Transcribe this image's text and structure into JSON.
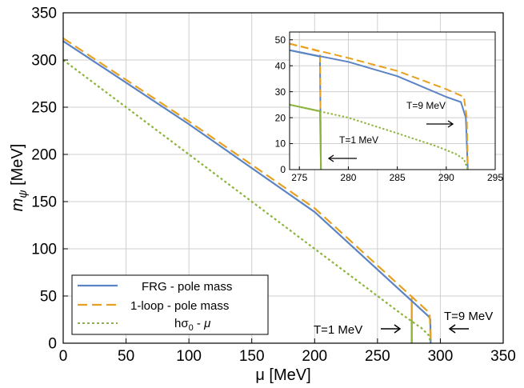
{
  "chart_data": [
    {
      "type": "line",
      "xlabel": "μ [MeV]",
      "ylabel_main": "m",
      "ylabel_sub": "ψ",
      "ylabel_unit": " [MeV]",
      "xlim": [
        0,
        350
      ],
      "ylim": [
        0,
        350
      ],
      "xticks": [
        "0",
        "50",
        "100",
        "150",
        "200",
        "250",
        "300",
        "350"
      ],
      "yticks": [
        "0",
        "50",
        "100",
        "150",
        "200",
        "250",
        "300",
        "350"
      ],
      "grid": true,
      "legend_position": "bottom-left",
      "series": [
        {
          "name": "FRG - pole mass",
          "color": "#5b84c4",
          "style": "solid",
          "points": [
            [
              0,
              320
            ],
            [
              100,
              232
            ],
            [
              200,
              139
            ],
            [
              291,
              28
            ],
            [
              292,
              25
            ],
            [
              292.3,
              0
            ]
          ]
        },
        {
          "name": "1-loop - pole mass",
          "color": "#e8a020",
          "style": "dashed",
          "points": [
            [
              0,
              323
            ],
            [
              100,
              235
            ],
            [
              200,
              143
            ],
            [
              291.5,
              32
            ],
            [
              292.3,
              0
            ]
          ]
        },
        {
          "name": "hσ0 - μ",
          "color": "#8db43a",
          "style": "dotted",
          "points": [
            [
              0,
              300
            ],
            [
              100,
              200
            ],
            [
              200,
              100
            ],
            [
              270,
              30
            ],
            [
              285,
              16
            ],
            [
              291,
              8
            ],
            [
              292.3,
              0
            ]
          ]
        },
        {
          "name": "T=1 MeV FRG",
          "color": "#5b84c4",
          "style": "solid",
          "points": [
            [
              277.2,
              46
            ],
            [
              277.2,
              0
            ]
          ]
        },
        {
          "name": "T=1 MeV 1-loop",
          "color": "#e8a020",
          "style": "solid",
          "points": [
            [
              277.2,
              48
            ],
            [
              277.2,
              0
            ]
          ]
        },
        {
          "name": "T=1 MeV hσ0",
          "color": "#8db43a",
          "style": "solid",
          "points": [
            [
              277.2,
              25
            ],
            [
              277.2,
              0
            ]
          ]
        }
      ],
      "annotations": [
        {
          "text": "T=1 MeV",
          "x": 262,
          "y": 15,
          "arrow": "right"
        },
        {
          "text": "T=9 MeV",
          "x": 330,
          "y": 42,
          "arrow": "left"
        }
      ]
    },
    {
      "type": "line",
      "title": "inset",
      "xlim": [
        274,
        295
      ],
      "ylim": [
        0,
        53
      ],
      "xticks": [
        "275",
        "280",
        "285",
        "290",
        "295"
      ],
      "yticks": [
        "0",
        "10",
        "20",
        "30",
        "40",
        "50"
      ],
      "grid": true,
      "series": [
        {
          "name": "FRG - pole mass",
          "color": "#5b84c4",
          "style": "solid",
          "points": [
            [
              274,
              46
            ],
            [
              280,
              41.5
            ],
            [
              285,
              36
            ],
            [
              290,
              28
            ],
            [
              291.5,
              26
            ],
            [
              292,
              20
            ],
            [
              292.2,
              0
            ]
          ]
        },
        {
          "name": "1-loop - pole mass",
          "color": "#e8a020",
          "style": "dashed",
          "points": [
            [
              274,
              48.5
            ],
            [
              280,
              43
            ],
            [
              285,
              38
            ],
            [
              290,
              31
            ],
            [
              291.8,
              28
            ],
            [
              292.1,
              20
            ],
            [
              292.2,
              0
            ]
          ]
        },
        {
          "name": "hσ0 - μ",
          "color": "#8db43a",
          "style": "dotted",
          "points": [
            [
              274,
              25
            ],
            [
              280,
              20
            ],
            [
              285,
              14
            ],
            [
              289,
              9
            ],
            [
              291,
              6
            ],
            [
              291.8,
              4
            ],
            [
              292.2,
              0
            ]
          ]
        },
        {
          "name": "T=1 MeV FRG",
          "color": "#5b84c4",
          "style": "solid",
          "points": [
            [
              274,
              46
            ],
            [
              277.1,
              43.5
            ],
            [
              277.2,
              0
            ]
          ]
        },
        {
          "name": "T=1 MeV 1-loop",
          "color": "#e8a020",
          "style": "dashed",
          "points": [
            [
              274,
              48.5
            ],
            [
              277.1,
              45.5
            ],
            [
              277.2,
              0
            ]
          ]
        },
        {
          "name": "T=1 MeV hσ0",
          "color": "#8db43a",
          "style": "solid",
          "points": [
            [
              274,
              25
            ],
            [
              277.1,
              22.5
            ],
            [
              277.2,
              0
            ]
          ]
        }
      ],
      "annotations": [
        {
          "text": "T=9 MeV",
          "x": 286,
          "y": 26,
          "arrow": "right"
        },
        {
          "text": "T=1 MeV",
          "x": 277.8,
          "y": 11,
          "arrow": "left"
        }
      ]
    }
  ]
}
